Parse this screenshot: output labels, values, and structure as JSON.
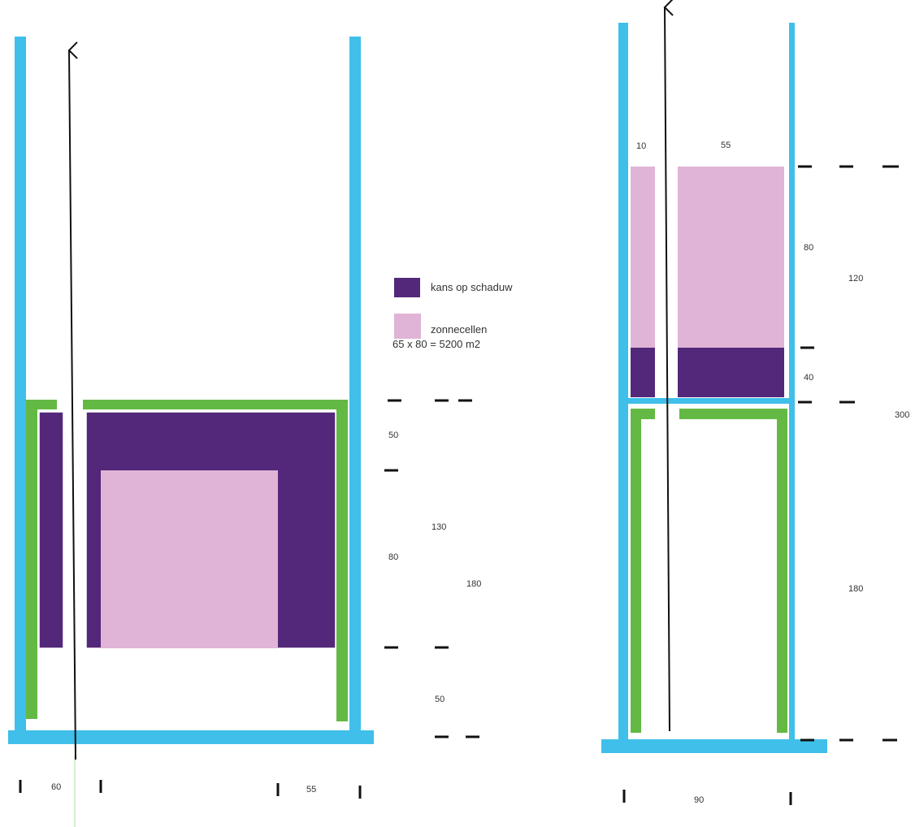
{
  "colors": {
    "frame": "#3fbfea",
    "green": "#63b944",
    "shadow": "#53287a",
    "solar": "#e0b4d6",
    "arrow": "#111111",
    "marker": "#111111",
    "text": "#333333"
  },
  "legend": {
    "shadow_label": "kans op schaduw",
    "solar_label": "zonnecellen",
    "area_label": "65 x 80 = 5200 m2"
  },
  "left_plan": {
    "dim_top": "50",
    "dim_solar": "80",
    "dim_130": "130",
    "dim_180": "180",
    "dim_bottom": "50",
    "dim_width_left": "60",
    "dim_width_right": "55"
  },
  "right_plan": {
    "dim_w10": "10",
    "dim_w55": "55",
    "dim_80": "80",
    "dim_40": "40",
    "dim_120": "120",
    "dim_300": "300",
    "dim_180": "180",
    "dim_90": "90"
  }
}
